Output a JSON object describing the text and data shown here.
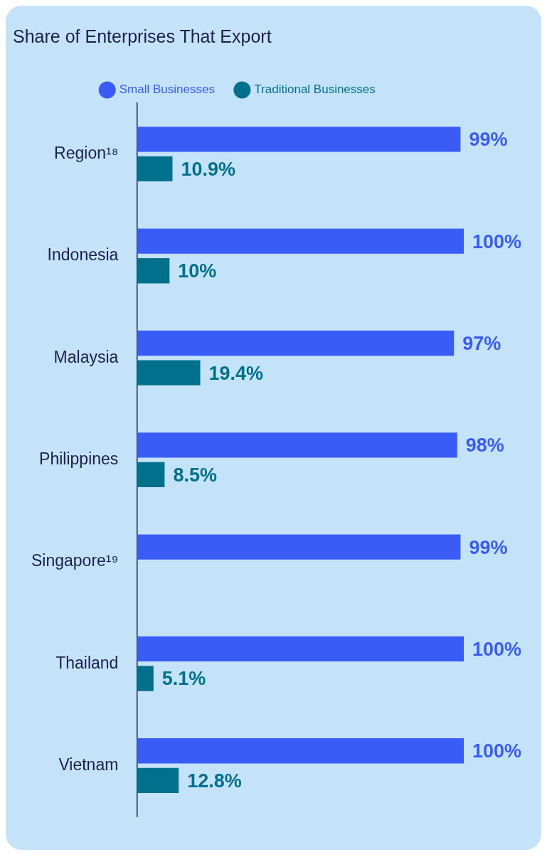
{
  "chart_data": {
    "type": "bar",
    "orientation": "horizontal",
    "title": "Share of Enterprises That Export",
    "categories": [
      "Region¹⁸",
      "Indonesia",
      "Malaysia",
      "Philippines",
      "Singapore¹⁹",
      "Thailand",
      "Vietnam"
    ],
    "series": [
      {
        "name": "Small Businesses",
        "color": "#3a5cf6",
        "values": [
          99,
          100,
          97,
          98,
          99,
          100,
          100
        ],
        "value_labels": [
          "99%",
          "100%",
          "97%",
          "98%",
          "99%",
          "100%",
          "100%"
        ]
      },
      {
        "name": "Traditional Businesses",
        "color": "#00708c",
        "values": [
          10.9,
          10,
          19.4,
          8.5,
          null,
          5.1,
          12.8
        ],
        "value_labels": [
          "10.9%",
          "10%",
          "19.4%",
          "8.5%",
          null,
          "5.1%",
          "12.8%"
        ]
      }
    ],
    "xlim": [
      0,
      100
    ],
    "tick_labels": "y",
    "legend": "top"
  }
}
